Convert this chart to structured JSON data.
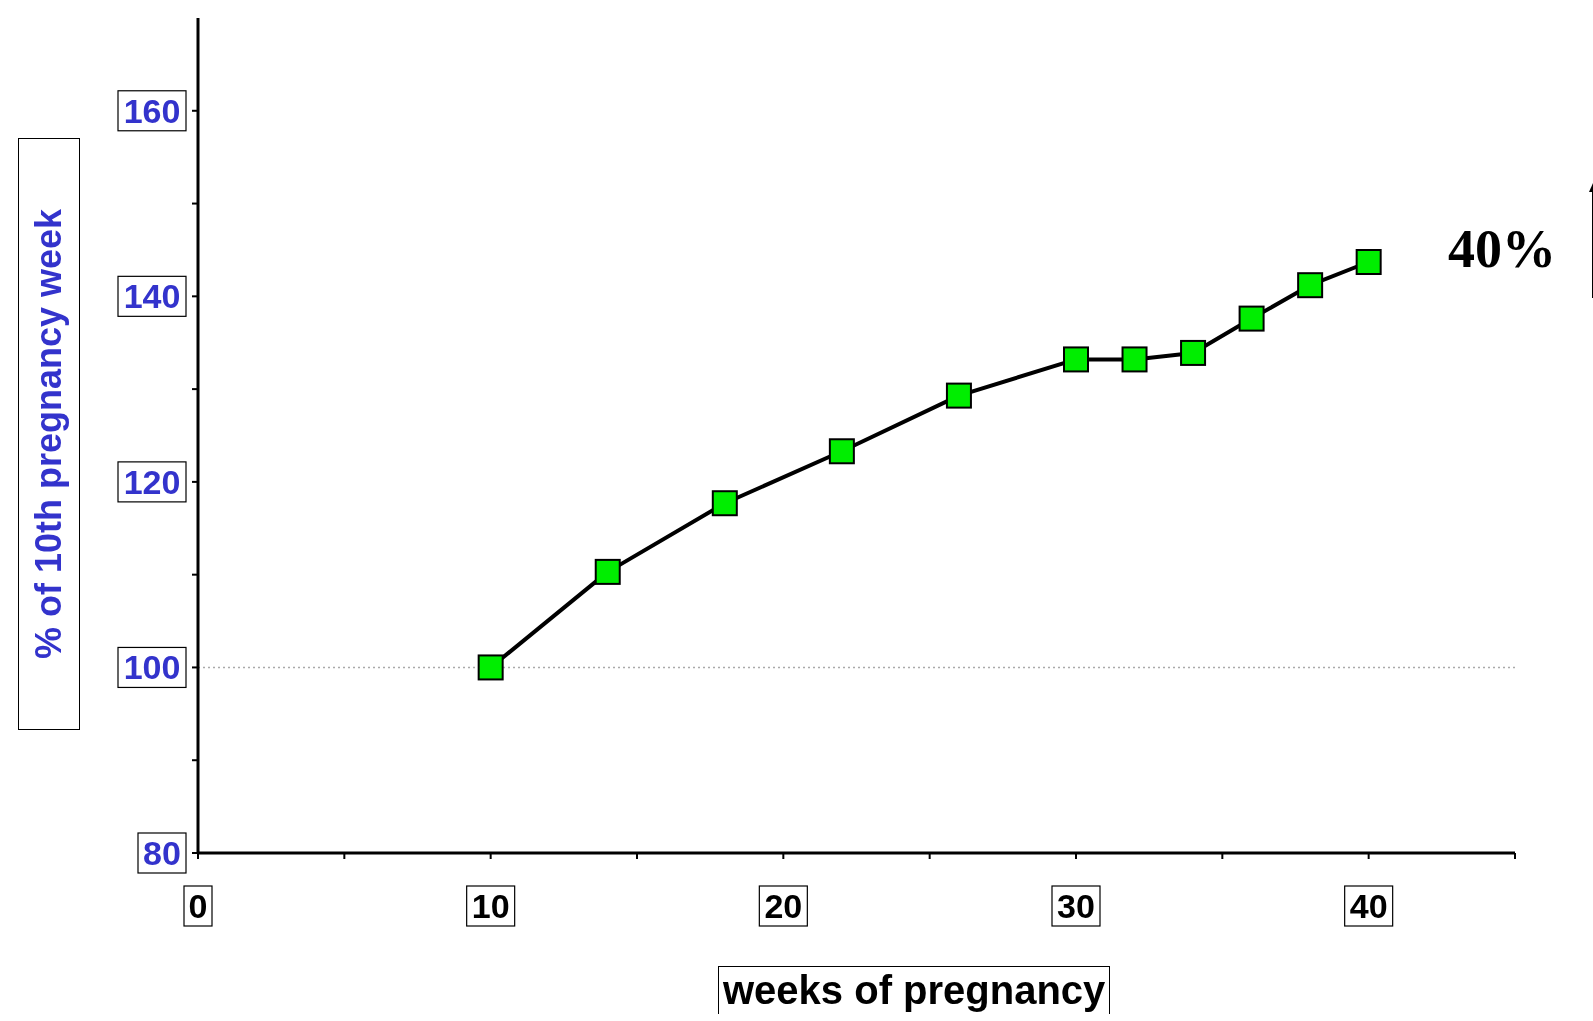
{
  "chart_data": {
    "type": "line",
    "xlabel": "weeks of pregnancy",
    "ylabel": "% of 10th pregnancy week",
    "x": [
      10,
      14,
      18,
      22,
      26,
      30,
      32,
      34,
      36,
      38,
      40
    ],
    "series": [
      {
        "color": "#00ee00",
        "values": [
          100,
          110.3,
          117.7,
          123.3,
          129.3,
          133.2,
          133.2,
          133.9,
          137.6,
          141.2,
          143.7
        ]
      }
    ],
    "xlim": [
      0,
      45
    ],
    "ylim": [
      80,
      170
    ],
    "xticks": [
      0,
      {
        "value": 5,
        "label": null
      },
      10,
      {
        "value": 15,
        "label": null
      },
      20,
      {
        "value": 25,
        "label": null
      },
      30,
      {
        "value": 35,
        "label": null
      },
      40,
      {
        "value": 45,
        "label": null
      }
    ],
    "yticks": [
      80,
      {
        "value": 90,
        "label": null
      },
      100,
      {
        "value": 110,
        "label": null
      },
      120,
      {
        "value": 130,
        "label": null
      },
      140,
      {
        "value": 150,
        "label": null
      },
      160
    ],
    "ref_lines": [
      {
        "axis": "y",
        "value": 100,
        "label": null,
        "color": "#aaaaaa",
        "line_style": "dotted"
      }
    ],
    "annotations": [
      "40%"
    ],
    "marker": "square",
    "line_style": "solid",
    "grid": false
  }
}
